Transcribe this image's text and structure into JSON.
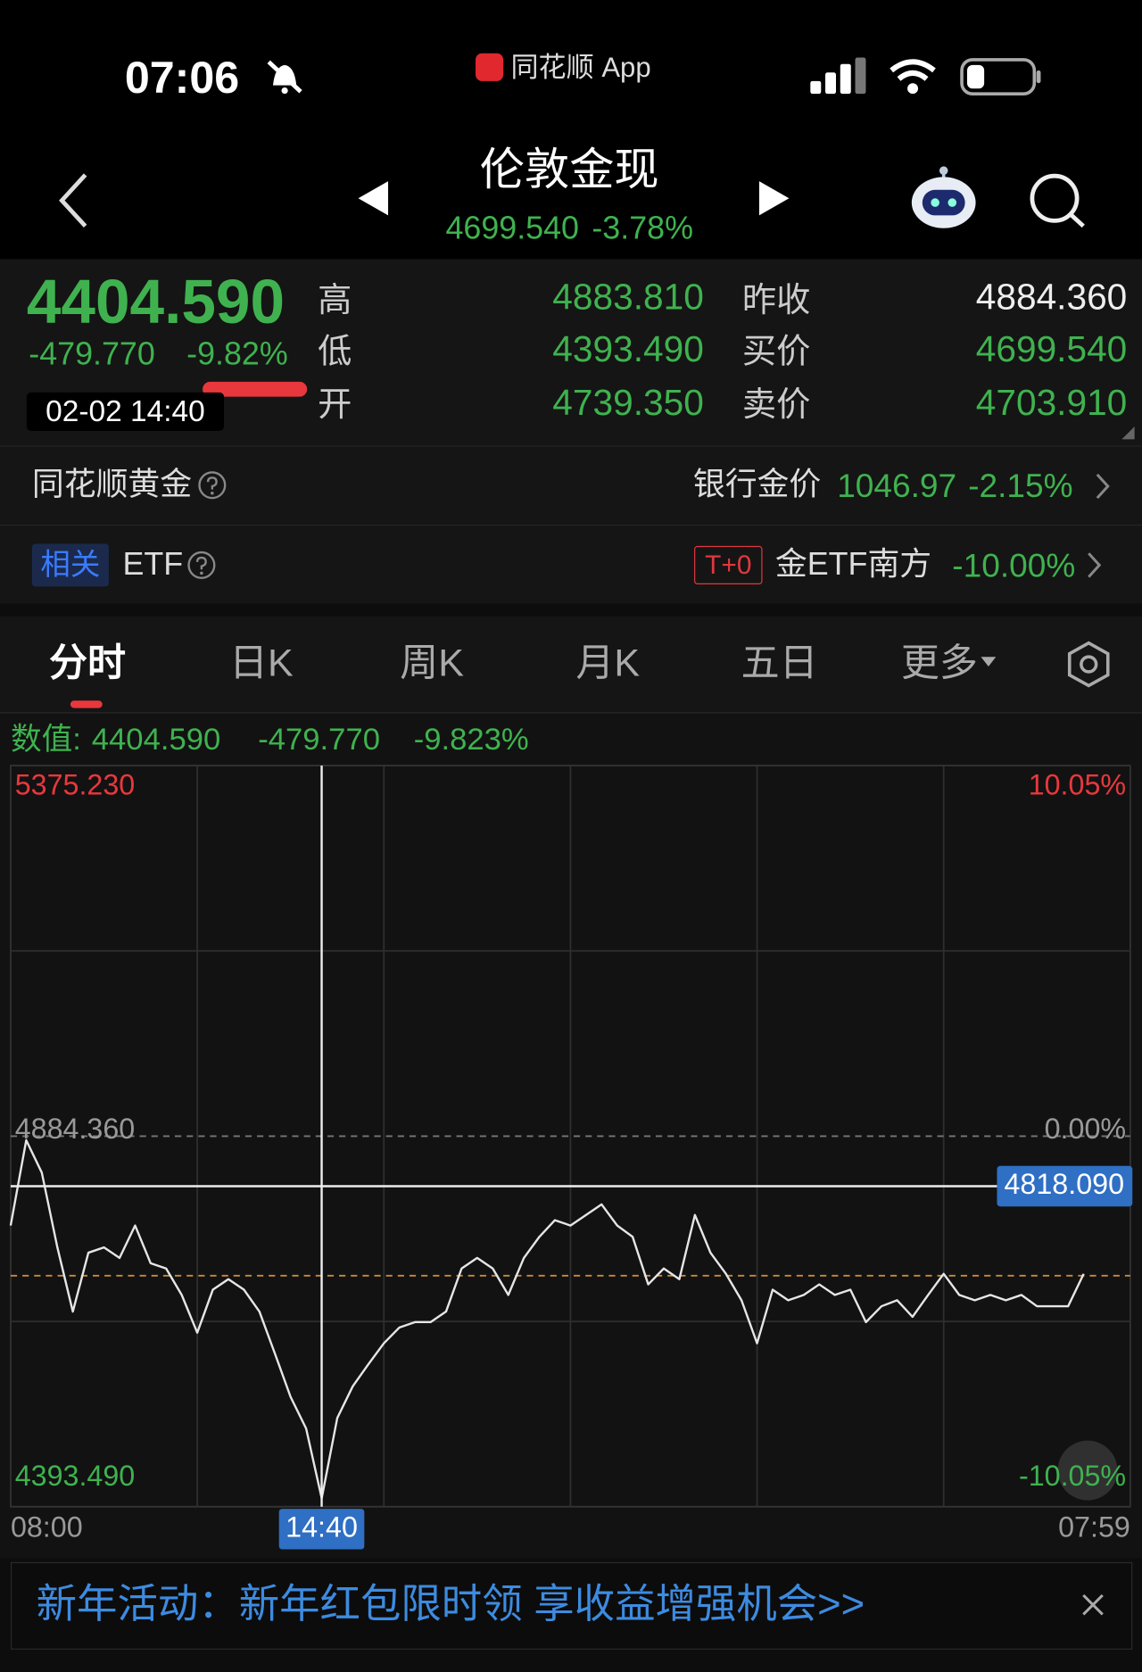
{
  "status_bar": {
    "time": "07:06",
    "app": "同花顺 App"
  },
  "header": {
    "title": "伦敦金现",
    "price": "4699.540",
    "change": "-3.78%"
  },
  "quote": {
    "price": "4404.590",
    "change": "-479.770",
    "change_pct": "-9.82%",
    "datetime": "02-02 14:40",
    "left": [
      {
        "label": "高",
        "value": "4883.810"
      },
      {
        "label": "低",
        "value": "4393.490"
      },
      {
        "label": "开",
        "value": "4739.350"
      }
    ],
    "right": [
      {
        "label": "昨收",
        "value": "4884.360"
      },
      {
        "label": "买价",
        "value": "4699.540"
      },
      {
        "label": "卖价",
        "value": "4703.910"
      }
    ]
  },
  "gold_row": {
    "name": "同花顺黄金",
    "bank_label": "银行金价",
    "bank_price": "1046.97",
    "bank_change": "-2.15%"
  },
  "etf_row": {
    "tag": "相关",
    "name": "ETF",
    "badge": "T+0",
    "fund": "金ETF南方",
    "change": "-10.00%"
  },
  "tabs": [
    "分时",
    "日K",
    "周K",
    "月K",
    "五日",
    "更多"
  ],
  "chart_data": {
    "type": "line",
    "readout": {
      "label": "数值:",
      "value": "4404.590",
      "change": "-479.770",
      "change_pct": "-9.823%"
    },
    "categories": [
      "08:00",
      null,
      null,
      null,
      null,
      null,
      null,
      null,
      null,
      null,
      null,
      null,
      null,
      null,
      null,
      null,
      null,
      null,
      null,
      null,
      "14:40",
      null,
      null,
      null,
      null,
      null,
      null,
      null,
      null,
      null,
      null,
      null,
      null,
      null,
      null,
      null,
      null,
      null,
      null,
      null,
      null,
      null,
      null,
      null,
      null,
      null,
      null,
      null,
      null,
      null,
      null,
      null,
      null,
      null,
      null,
      null,
      null,
      null,
      null,
      null,
      null,
      null,
      null,
      null,
      null,
      null,
      null,
      null,
      null,
      null,
      null,
      null,
      "07:59"
    ],
    "values": [
      4766,
      4879,
      4836,
      4737,
      4652,
      4730,
      4737,
      4723,
      4766,
      4716,
      4709,
      4674,
      4624,
      4681,
      4695,
      4681,
      4652,
      4596,
      4539,
      4497,
      4404.59,
      4511,
      4553,
      4582,
      4610,
      4631,
      4638,
      4638,
      4652,
      4709,
      4723,
      4709,
      4674,
      4723,
      4751,
      4773,
      4766,
      4780,
      4794,
      4766,
      4751,
      4688,
      4709,
      4695,
      4780,
      4730,
      4702,
      4667,
      4610,
      4681,
      4667,
      4674,
      4688,
      4674,
      4681,
      4638,
      4659,
      4667,
      4645,
      4674,
      4702,
      4674,
      4667,
      4674,
      4667,
      4674,
      4659,
      4659,
      4659,
      4702,
      null,
      null,
      null
    ],
    "color": "#e6e6e6",
    "ylim": [
      4393.49,
      5375.23
    ],
    "yticks": [
      {
        "value": 5375.23,
        "label": "5375.230"
      },
      {
        "value": 4884.36,
        "label": "4884.360"
      },
      {
        "value": 4393.49,
        "label": "4393.490"
      }
    ],
    "y2lim": [
      -10.05,
      10.05
    ],
    "y2ticks": [
      {
        "value": 10.05,
        "label": "10.05%"
      },
      {
        "value": 0,
        "label": "0.00%"
      },
      {
        "value": -10.05,
        "label": "-10.05%"
      }
    ],
    "crosshair": {
      "value": 4818.09,
      "label": "4818.090"
    },
    "price_line": 4699.54
  },
  "banner": {
    "text": "新年活动：新年红包限时领 享收益增强机会>>"
  }
}
